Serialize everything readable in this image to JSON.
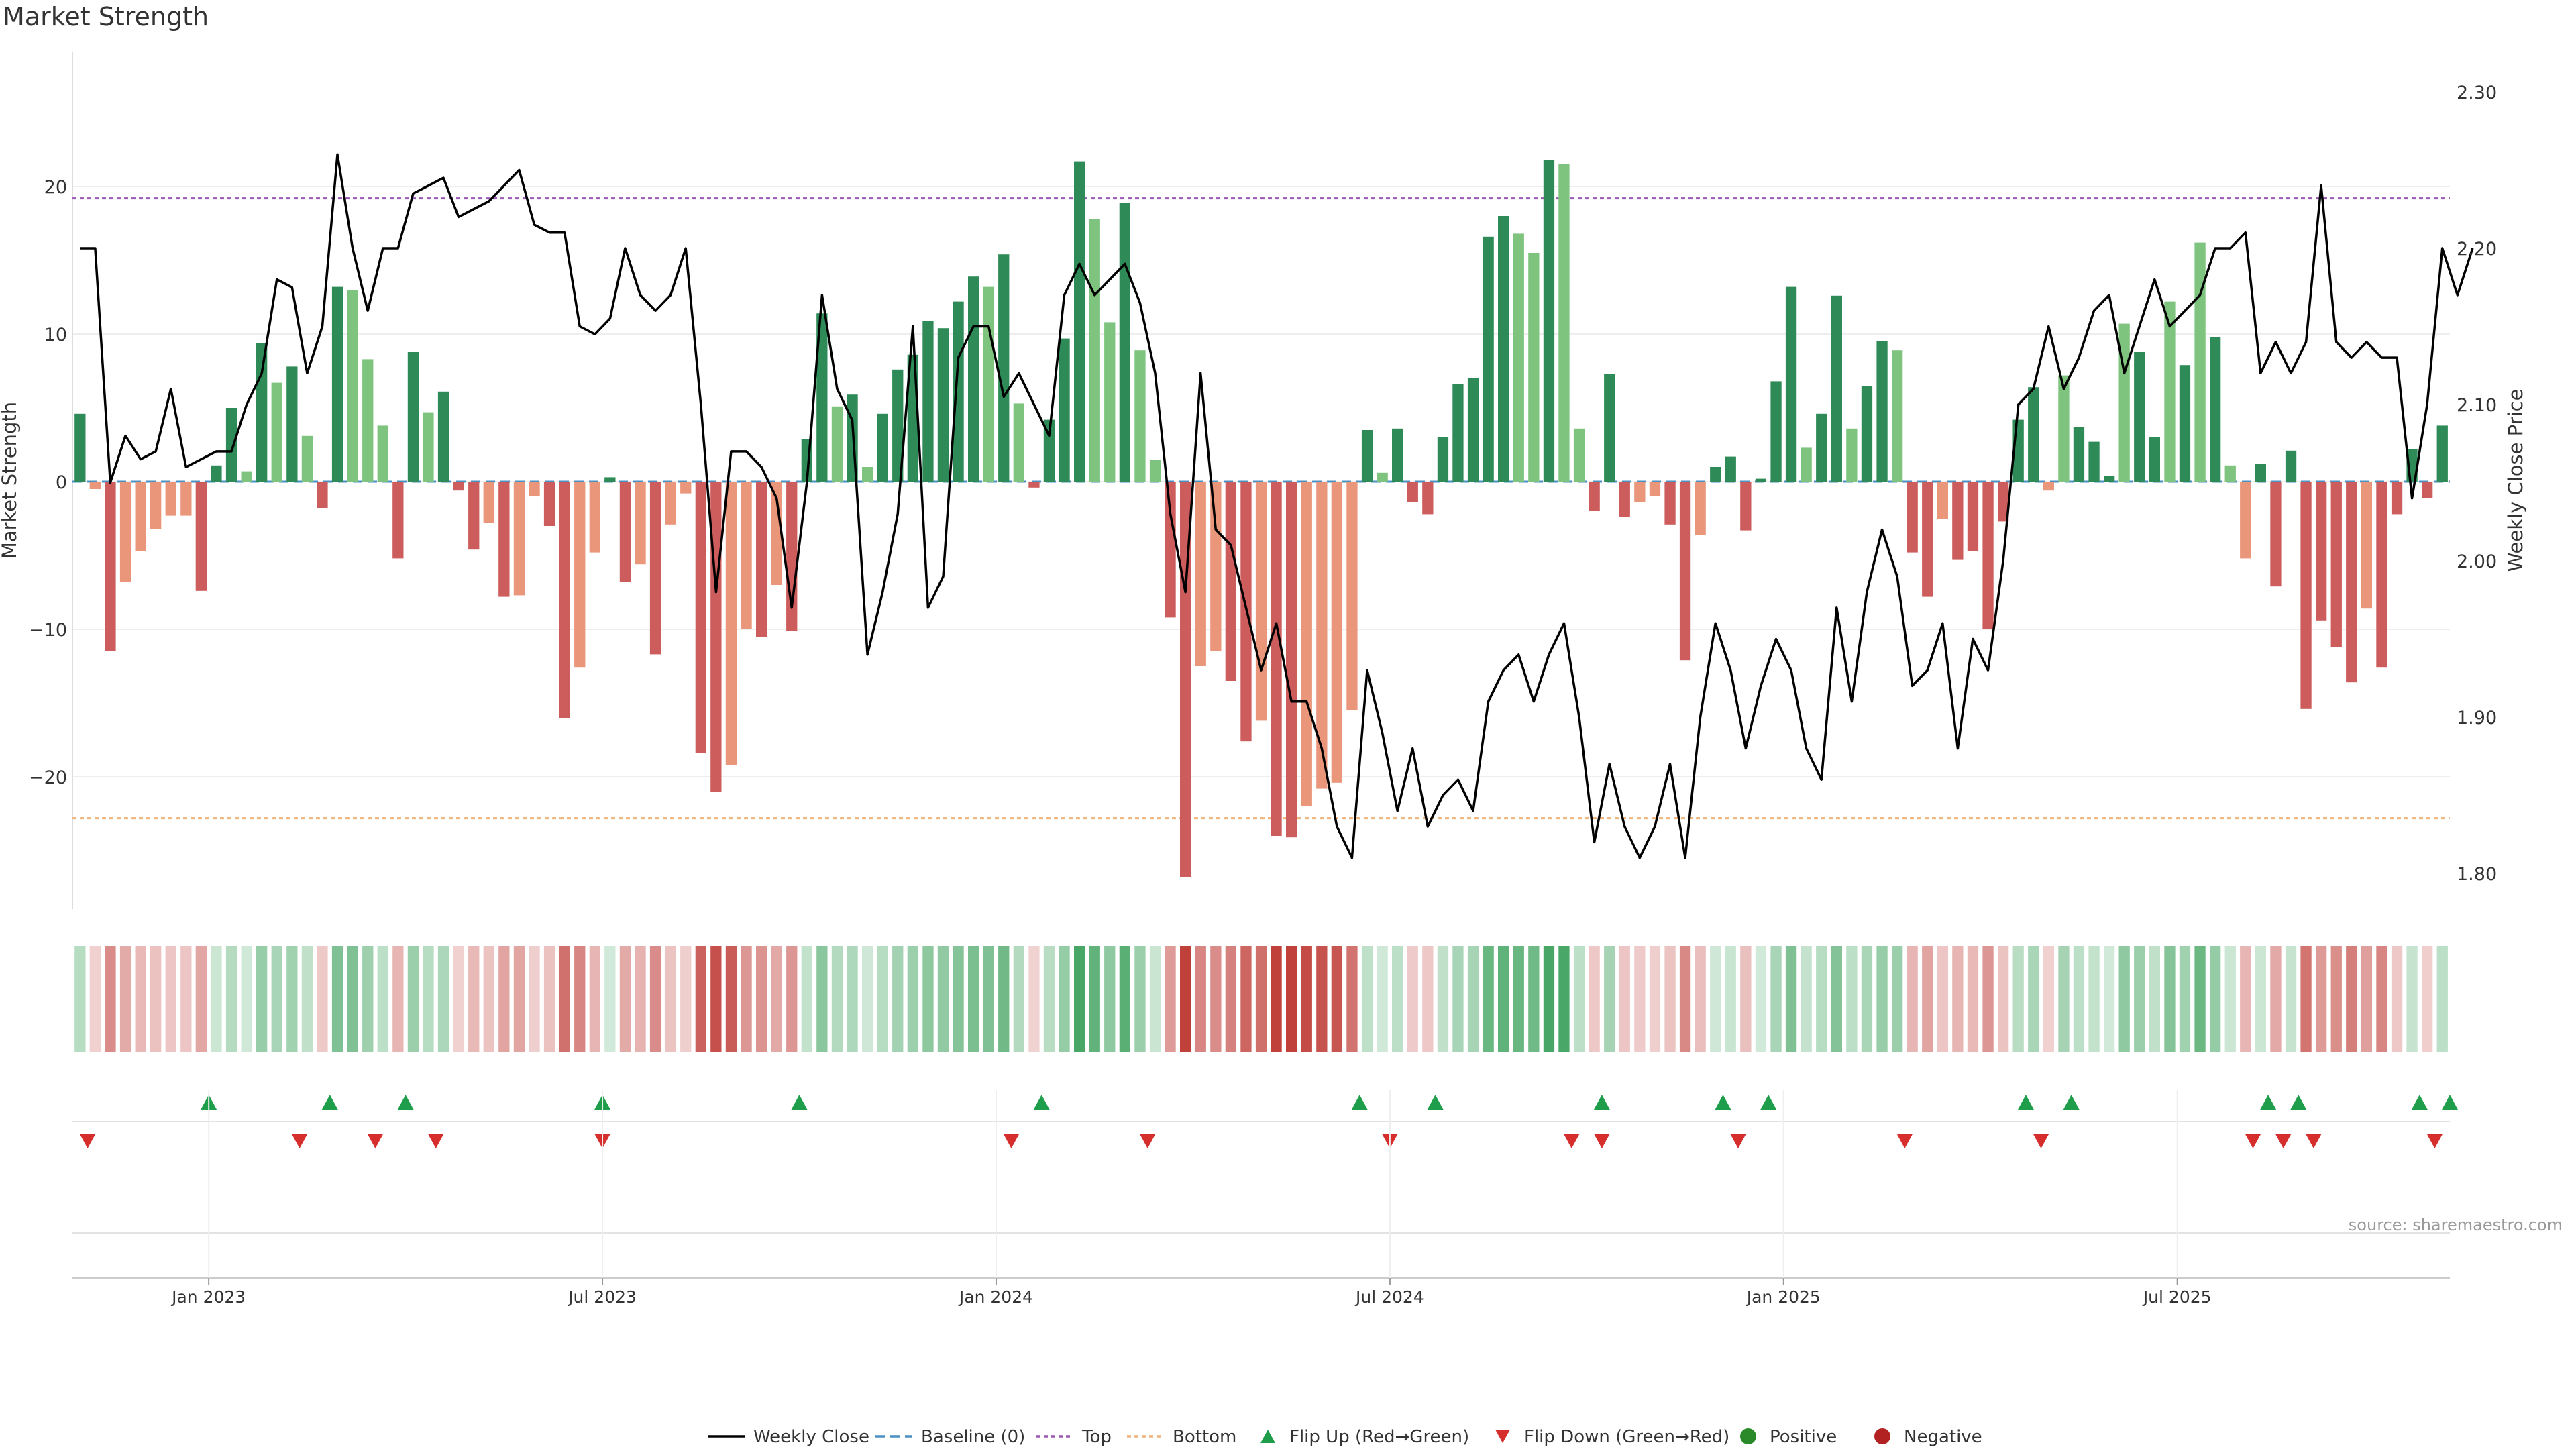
{
  "title": "Market Strength",
  "source": "source: sharemaestro.com",
  "colors": {
    "strong_up": "#2e8b57",
    "weak_up": "#7ec47e",
    "strong_down": "#cd5c5c",
    "weak_down": "#e9967a",
    "price_line": "#000000",
    "top_line": "#9b59b6",
    "bottom_line": "#f0b27a",
    "baseline": "#4a90c2",
    "flip_up": "#1e9e4a",
    "flip_down": "#d62d2d",
    "positive": "#2a8a2a",
    "negative": "#b22222"
  },
  "chart_data": {
    "type": "bar",
    "title": "Market Strength",
    "ylabel": "Market Strength",
    "y2label": "Weekly Close Price",
    "ylim": [
      -29,
      26.5
    ],
    "y2lim": [
      1.78,
      2.3
    ],
    "y_ticks": [
      20,
      10,
      0,
      -10,
      -20
    ],
    "y_tick_labels": [
      "20",
      "10",
      "0",
      "−10",
      "−20"
    ],
    "y2_ticks": [
      2.3,
      2.2,
      2.1,
      2.0,
      1.9,
      1.8
    ],
    "y2_tick_labels": [
      "2.30",
      "2.20",
      "2.10",
      "2.00",
      "1.90",
      "1.80"
    ],
    "x_ticks": [
      9,
      35,
      61,
      87,
      113,
      139
    ],
    "x_tick_labels": [
      "Jan 2023",
      "Jul 2023",
      "Jan 2024",
      "Jul 2024",
      "Jan 2025",
      "Jul 2025"
    ],
    "top": 19.2,
    "bottom": -22.8,
    "baseline": 0,
    "weeks": 157,
    "strength": [
      4.6,
      -0.5,
      -11.5,
      -6.8,
      -4.7,
      -3.2,
      -2.3,
      -2.3,
      -7.4,
      1.1,
      5.0,
      0.7,
      9.4,
      6.7,
      7.8,
      3.1,
      -1.8,
      13.2,
      13.0,
      8.3,
      3.8,
      -5.2,
      8.8,
      4.7,
      6.1,
      -0.6,
      -4.6,
      -2.8,
      -7.8,
      -7.7,
      -1.0,
      -3.0,
      -16.0,
      -12.6,
      -4.8,
      0.3,
      -6.8,
      -5.6,
      -11.7,
      -2.9,
      -0.8,
      -18.4,
      -21.0,
      -19.2,
      -10.0,
      -10.5,
      -7.0,
      -10.1,
      2.9,
      11.4,
      5.1,
      5.9,
      1.0,
      4.6,
      7.6,
      8.6,
      10.9,
      10.4,
      12.2,
      13.9,
      13.2,
      15.4,
      5.3,
      -0.4,
      4.2,
      9.7,
      21.7,
      17.8,
      10.8,
      18.9,
      8.9,
      1.5,
      -9.2,
      -26.8,
      -12.5,
      -11.5,
      -13.5,
      -17.6,
      -16.2,
      -24.0,
      -24.1,
      -22.0,
      -20.8,
      -20.4,
      -15.5,
      3.5,
      0.6,
      3.6,
      -1.4,
      -2.2,
      3.0,
      6.6,
      7.0,
      16.6,
      18.0,
      16.8,
      15.5,
      21.8,
      21.5,
      3.6,
      -2.0,
      7.3,
      -2.4,
      -1.4,
      -1.0,
      -2.9,
      -12.1,
      -3.6,
      1.0,
      1.7,
      -3.3,
      0.2,
      6.8,
      13.2,
      2.3,
      4.6,
      12.6,
      3.6,
      6.5,
      9.5,
      8.9,
      -4.8,
      -7.8,
      -2.5,
      -5.3,
      -4.7,
      -10.0,
      -2.7,
      4.2,
      6.4,
      -0.6,
      7.2,
      3.7,
      2.7,
      0.4,
      10.7,
      8.8,
      3.0,
      12.2,
      7.9,
      16.2,
      9.8,
      1.1,
      -5.2,
      1.2,
      -7.1,
      2.1,
      -15.4,
      -9.4,
      -11.2,
      -13.6,
      -8.6,
      -12.6,
      -2.2,
      2.2,
      -1.1,
      3.8
    ],
    "strong": [
      1,
      0,
      1,
      0,
      0,
      0,
      0,
      0,
      1,
      1,
      1,
      0,
      1,
      0,
      1,
      0,
      1,
      1,
      0,
      0,
      0,
      1,
      1,
      0,
      1,
      1,
      1,
      0,
      1,
      0,
      0,
      1,
      1,
      0,
      0,
      1,
      1,
      0,
      1,
      0,
      0,
      1,
      1,
      0,
      0,
      1,
      0,
      1,
      1,
      1,
      0,
      1,
      0,
      1,
      1,
      1,
      1,
      1,
      1,
      1,
      0,
      1,
      0,
      1,
      1,
      1,
      1,
      0,
      0,
      1,
      0,
      0,
      1,
      1,
      0,
      0,
      1,
      1,
      0,
      1,
      1,
      0,
      0,
      0,
      0,
      1,
      0,
      1,
      1,
      1,
      1,
      1,
      1,
      1,
      1,
      0,
      0,
      1,
      0,
      0,
      1,
      1,
      1,
      0,
      0,
      1,
      1,
      0,
      1,
      1,
      1,
      1,
      1,
      1,
      0,
      1,
      1,
      0,
      1,
      1,
      0,
      1,
      1,
      0,
      1,
      1,
      1,
      1,
      1,
      1,
      0,
      0,
      1,
      1,
      1,
      0,
      1,
      1,
      0,
      1,
      0,
      1,
      0,
      0,
      1,
      1,
      1,
      1,
      1,
      1,
      1,
      0,
      1,
      1,
      1,
      1,
      1
    ],
    "price": [
      2.2,
      2.2,
      2.05,
      2.08,
      2.065,
      2.07,
      2.11,
      2.06,
      2.065,
      2.07,
      2.07,
      2.1,
      2.12,
      2.18,
      2.175,
      2.12,
      2.15,
      2.26,
      2.2,
      2.16,
      2.2,
      2.2,
      2.235,
      2.24,
      2.245,
      2.22,
      2.225,
      2.23,
      2.24,
      2.25,
      2.215,
      2.21,
      2.21,
      2.15,
      2.145,
      2.155,
      2.2,
      2.17,
      2.16,
      2.17,
      2.2,
      2.1,
      1.98,
      2.07,
      2.07,
      2.06,
      2.04,
      1.97,
      2.05,
      2.17,
      2.11,
      2.09,
      1.94,
      1.98,
      2.03,
      2.15,
      1.97,
      1.99,
      2.13,
      2.15,
      2.15,
      2.105,
      2.12,
      2.1,
      2.08,
      2.17,
      2.19,
      2.17,
      2.18,
      2.19,
      2.165,
      2.12,
      2.03,
      1.98,
      2.12,
      2.02,
      2.01,
      1.97,
      1.93,
      1.96,
      1.91,
      1.91,
      1.88,
      1.83,
      1.81,
      1.93,
      1.89,
      1.84,
      1.88,
      1.83,
      1.85,
      1.86,
      1.84,
      1.91,
      1.93,
      1.94,
      1.91,
      1.94,
      1.96,
      1.9,
      1.82,
      1.87,
      1.83,
      1.81,
      1.83,
      1.87,
      1.81,
      1.9,
      1.96,
      1.93,
      1.88,
      1.92,
      1.95,
      1.93,
      1.88,
      1.86,
      1.97,
      1.91,
      1.98,
      2.02,
      1.99,
      1.92,
      1.93,
      1.96,
      1.88,
      1.95,
      1.93,
      2.0,
      2.1,
      2.11,
      2.15,
      2.11,
      2.13,
      2.16,
      2.17,
      2.12,
      2.15,
      2.18,
      2.15,
      2.16,
      2.17,
      2.2,
      2.2,
      2.21,
      2.12,
      2.14,
      2.12,
      2.14,
      2.24,
      2.14,
      2.13,
      2.14,
      2.13,
      2.13,
      2.04,
      2.1,
      2.2,
      2.17,
      2.2
    ],
    "flip_up": [
      9,
      17,
      22,
      35,
      48,
      64,
      85,
      90,
      101,
      109,
      112,
      129,
      132,
      145,
      147,
      155,
      157
    ],
    "flip_down": [
      1,
      15,
      20,
      24,
      35,
      62,
      71,
      87,
      99,
      101,
      110,
      121,
      130,
      144,
      146,
      148,
      156
    ],
    "legend": [
      "Weekly Close",
      "Baseline (0)",
      "Top",
      "Bottom",
      "Flip Up (Red→Green)",
      "Flip Down (Green→Red)",
      "Positive",
      "Negative"
    ]
  }
}
